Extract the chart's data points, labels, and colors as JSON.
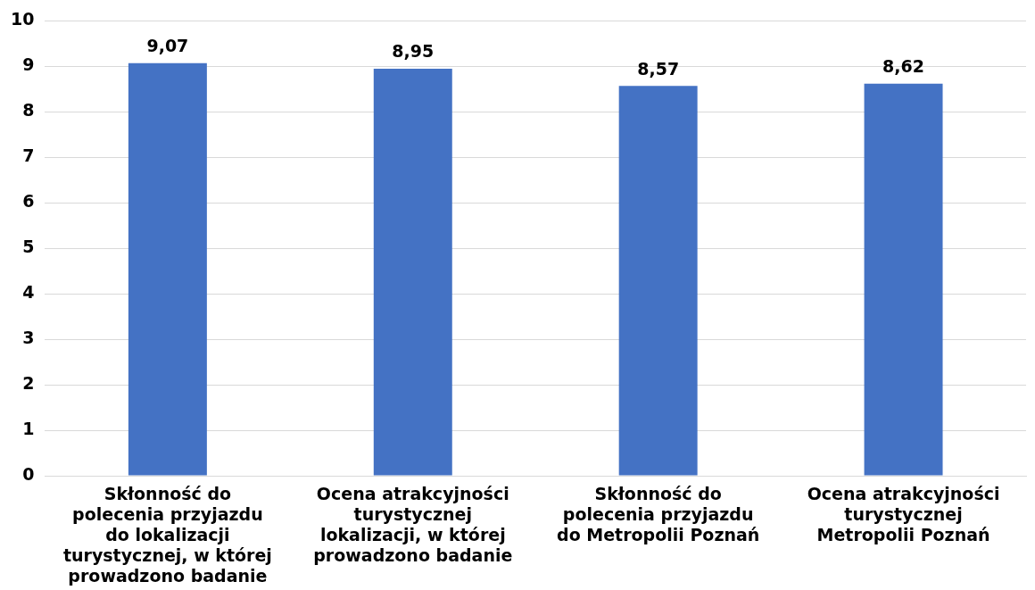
{
  "chart_data": {
    "type": "bar",
    "categories": [
      "Skłonność do polecenia przyjazdu do lokalizacji turystycznej, w której prowadzono badanie",
      "Ocena atrakcyjności turystycznej lokalizacji, w której prowadzono badanie",
      "Skłonność do polecenia przyjazdu do Metropolii Poznań",
      "Ocena atrakcyjności turystycznej Metropolii Poznań"
    ],
    "values": [
      9.07,
      8.95,
      8.57,
      8.62
    ],
    "value_labels": [
      "9,07",
      "8,95",
      "8,57",
      "8,62"
    ],
    "color": "#4472c4",
    "ylim": [
      0,
      10
    ],
    "yticks": [
      0,
      1,
      2,
      3,
      4,
      5,
      6,
      7,
      8,
      9,
      10
    ],
    "grid": "y",
    "legend": false
  }
}
